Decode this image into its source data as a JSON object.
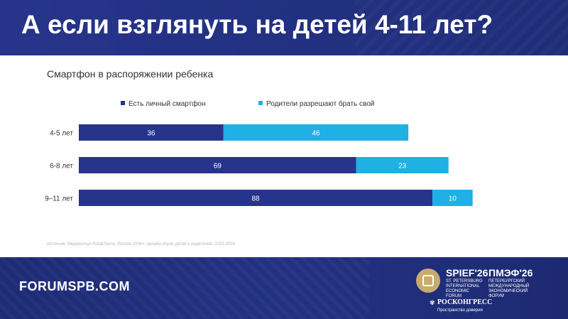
{
  "header": {
    "title": "А если взглянуть на детей 4-11 лет?"
  },
  "footer": {
    "site": "FORUMSPB.COM",
    "brand_en": "SPIEF'26",
    "brand_en_sub": "ST. PETERSBURG INTERNATIONAL ECONOMIC FORUM",
    "brand_ru": "ПМЭФ'26",
    "brand_ru_sub": "ПЕТЕРБУРГСКИЙ МЕЖДУНАРОДНЫЙ ЭКОНОМИЧЕСКИЙ ФОРУМ",
    "roscongress": "РОСКОНГРЕСС",
    "roscongress_sub": "Пространство доверия"
  },
  "chart_data": {
    "type": "bar",
    "orientation": "horizontal",
    "stacked": true,
    "title": "Смартфон в распоряжении ребенка",
    "categories": [
      "4-5 лет",
      "6-8 лет",
      "9–11 лет"
    ],
    "series": [
      {
        "name": "Есть личный смартфон",
        "values": [
          36,
          69,
          88
        ],
        "color": "#27348b"
      },
      {
        "name": "Родители разрешают брать свой",
        "values": [
          46,
          23,
          10
        ],
        "color": "#1fb0e4"
      }
    ],
    "xlim": [
      0,
      100
    ],
    "grid": false,
    "legend": "top-center",
    "source": "Источник: Медиаскоуп Kids&Teens, Россия 100k+, онлайн-опрос детей и родителей, 2023-2024"
  }
}
